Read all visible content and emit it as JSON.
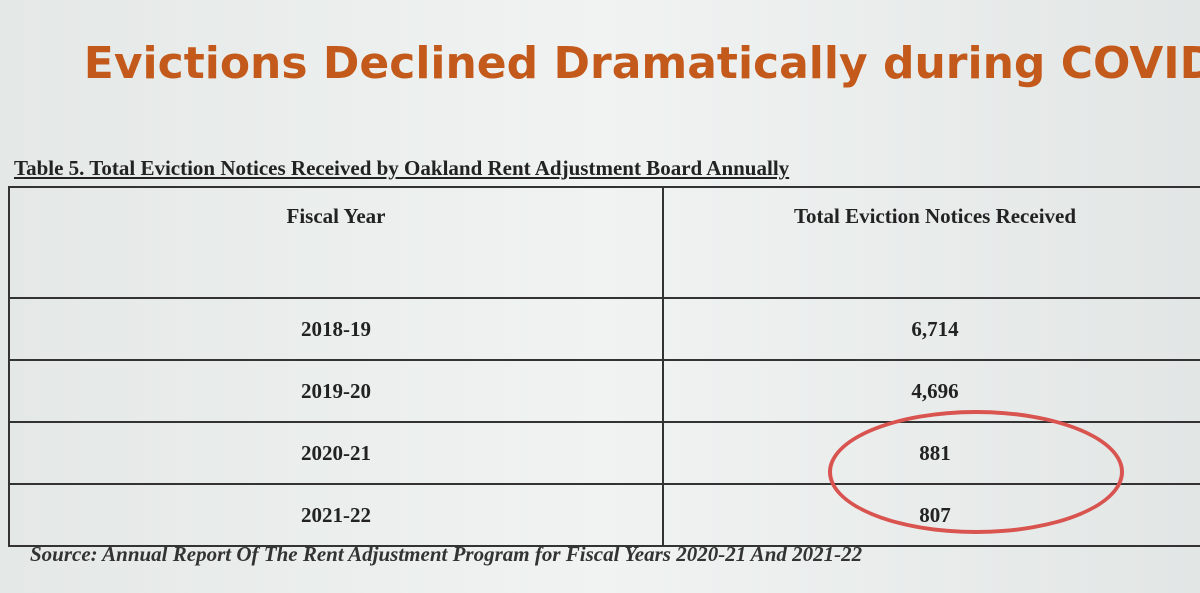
{
  "title": "Evictions Declined Dramatically during COVID",
  "table": {
    "caption": "Table 5. Total Eviction Notices Received by Oakland Rent Adjustment Board Annually",
    "header": [
      "Fiscal Year",
      "Total Eviction Notices Received"
    ],
    "rows": [
      [
        "2018-19",
        "6,714"
      ],
      [
        "2019-20",
        "4,696"
      ],
      [
        "2020-21",
        "881"
      ],
      [
        "2021-22",
        "807"
      ]
    ]
  },
  "source": "Source: Annual Report Of The Rent Adjustment Program for Fiscal Years 2020-21 And 2021-22"
}
